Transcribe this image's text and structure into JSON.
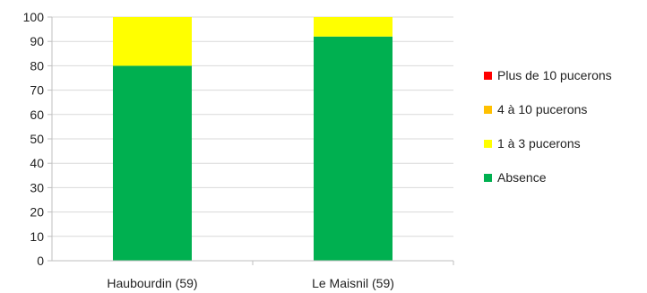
{
  "chart_data": {
    "type": "bar",
    "stacked": true,
    "title": "",
    "xlabel": "",
    "ylabel": "",
    "categories": [
      "Haubourdin (59)",
      "Le Maisnil (59)"
    ],
    "series": [
      {
        "name": "Absence",
        "color": "#00b050",
        "values": [
          80,
          92
        ]
      },
      {
        "name": "1 à 3 pucerons",
        "color": "#ffff00",
        "values": [
          20,
          8
        ]
      },
      {
        "name": "4 à 10 pucerons",
        "color": "#ffc000",
        "values": [
          0,
          0
        ]
      },
      {
        "name": "Plus de 10 pucerons",
        "color": "#ff0000",
        "values": [
          0,
          0
        ]
      }
    ],
    "ylim": [
      0,
      100
    ],
    "yticks": [
      "0",
      "10",
      "20",
      "30",
      "40",
      "50",
      "60",
      "70",
      "80",
      "90",
      "100"
    ],
    "grid": true,
    "legend_position": "right",
    "legend_order": [
      "Plus de 10 pucerons",
      "4 à 10 pucerons",
      "1 à 3 pucerons",
      "Absence"
    ]
  }
}
